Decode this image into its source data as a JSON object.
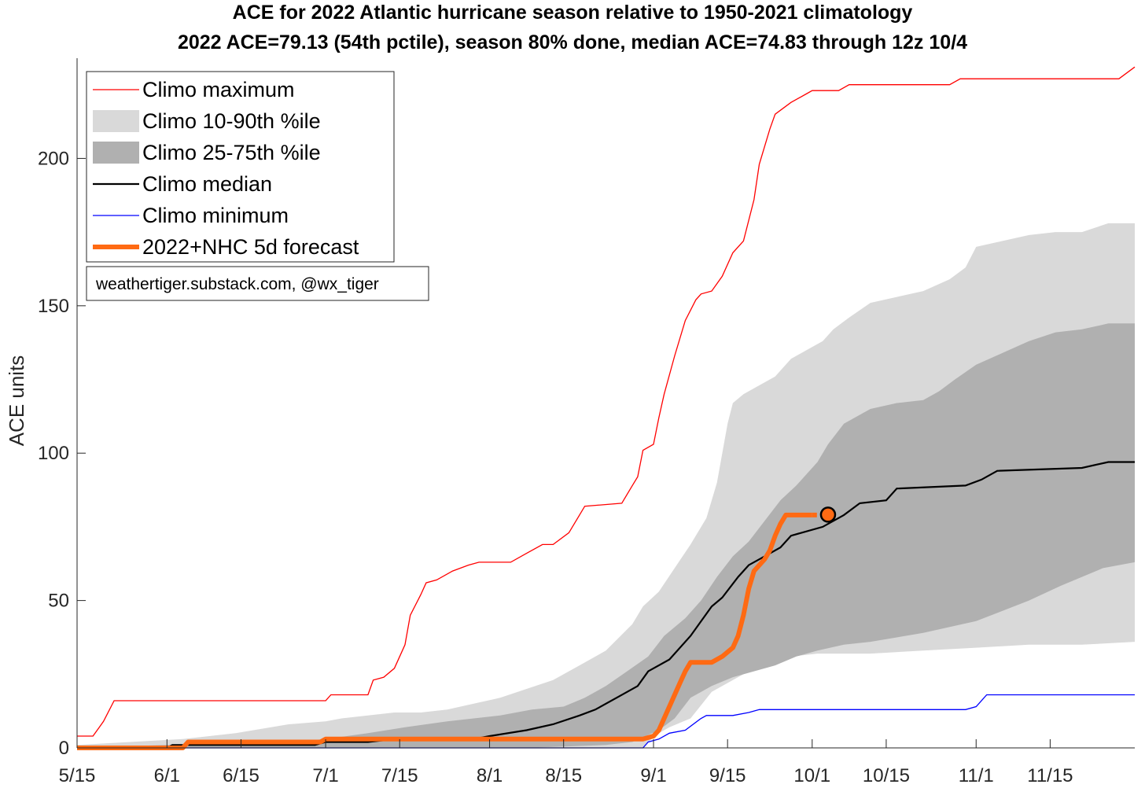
{
  "chart_data": {
    "type": "area",
    "title": "ACE for 2022 Atlantic hurricane season relative to 1950-2021 climatology",
    "subtitle": "2022 ACE=79.13 (54th pctile), season 80% done, median ACE=74.83 through 12z 10/4",
    "xlabel": "",
    "ylabel": "ACE units",
    "x_unit": "days since May 15",
    "xlim": [
      0,
      200
    ],
    "ylim": [
      0,
      234
    ],
    "grid": false,
    "legend_position": "top-left",
    "x_ticks": [
      {
        "label": "5/15",
        "day": 0
      },
      {
        "label": "6/1",
        "day": 17
      },
      {
        "label": "6/15",
        "day": 31
      },
      {
        "label": "7/1",
        "day": 47
      },
      {
        "label": "7/15",
        "day": 61
      },
      {
        "label": "8/1",
        "day": 78
      },
      {
        "label": "8/15",
        "day": 92
      },
      {
        "label": "9/1",
        "day": 109
      },
      {
        "label": "9/15",
        "day": 123
      },
      {
        "label": "10/1",
        "day": 139
      },
      {
        "label": "10/15",
        "day": 153
      },
      {
        "label": "11/1",
        "day": 170
      },
      {
        "label": "11/15",
        "day": 184
      }
    ],
    "y_ticks": [
      0,
      50,
      100,
      150,
      200
    ],
    "legend": [
      {
        "key": "max",
        "label": "Climo maximum"
      },
      {
        "key": "p10_90",
        "label": "Climo 10-90th %ile"
      },
      {
        "key": "p25_75",
        "label": "Climo 25-75th %ile"
      },
      {
        "key": "median",
        "label": "Climo median"
      },
      {
        "key": "min",
        "label": "Climo minimum"
      },
      {
        "key": "y2022",
        "label": "2022+NHC 5d forecast"
      }
    ],
    "annotation": "weathertiger.substack.com, @wx_tiger",
    "colors": {
      "max": "#ff0000",
      "p10_90": "#d9d9d9",
      "p25_75": "#b0b0b0",
      "median": "#000000",
      "min": "#0000ff",
      "y2022": "#ff6a13",
      "marker_fill": "#ff6a13",
      "marker_edge": "#000000"
    },
    "series": {
      "max": [
        [
          0,
          4
        ],
        [
          3,
          4
        ],
        [
          5,
          9
        ],
        [
          7,
          16
        ],
        [
          30,
          16
        ],
        [
          47,
          16
        ],
        [
          48,
          18
        ],
        [
          55,
          18
        ],
        [
          56,
          23
        ],
        [
          58,
          24
        ],
        [
          60,
          27
        ],
        [
          62,
          35
        ],
        [
          63,
          45
        ],
        [
          65,
          52
        ],
        [
          66,
          56
        ],
        [
          68,
          57
        ],
        [
          71,
          60
        ],
        [
          74,
          62
        ],
        [
          76,
          63
        ],
        [
          82,
          63
        ],
        [
          85,
          66
        ],
        [
          88,
          69
        ],
        [
          90,
          69
        ],
        [
          93,
          73
        ],
        [
          95,
          79
        ],
        [
          96,
          82
        ],
        [
          103,
          83
        ],
        [
          105,
          89
        ],
        [
          106,
          92
        ],
        [
          107,
          101
        ],
        [
          109,
          103
        ],
        [
          110,
          112
        ],
        [
          111,
          120
        ],
        [
          113,
          133
        ],
        [
          115,
          145
        ],
        [
          117,
          152
        ],
        [
          118,
          154
        ],
        [
          120,
          155
        ],
        [
          122,
          160
        ],
        [
          124,
          168
        ],
        [
          126,
          172
        ],
        [
          128,
          186
        ],
        [
          129,
          198
        ],
        [
          131,
          210
        ],
        [
          132,
          215
        ],
        [
          135,
          219
        ],
        [
          138,
          222
        ],
        [
          139,
          223
        ],
        [
          144,
          223
        ],
        [
          146,
          225
        ],
        [
          165,
          225
        ],
        [
          167,
          227
        ],
        [
          197,
          227
        ],
        [
          200,
          231
        ]
      ],
      "min": [
        [
          0,
          0
        ],
        [
          107,
          0
        ],
        [
          108,
          2
        ],
        [
          110,
          3
        ],
        [
          112,
          5
        ],
        [
          115,
          6
        ],
        [
          118,
          10
        ],
        [
          119,
          11
        ],
        [
          124,
          11
        ],
        [
          127,
          12
        ],
        [
          129,
          13
        ],
        [
          168,
          13
        ],
        [
          170,
          14
        ],
        [
          172,
          18
        ],
        [
          200,
          18
        ]
      ],
      "median": [
        [
          0,
          0
        ],
        [
          17,
          0
        ],
        [
          18,
          1
        ],
        [
          45,
          1
        ],
        [
          47,
          2
        ],
        [
          55,
          2
        ],
        [
          60,
          3
        ],
        [
          75,
          3
        ],
        [
          78,
          4
        ],
        [
          85,
          6
        ],
        [
          90,
          8
        ],
        [
          95,
          11
        ],
        [
          98,
          13
        ],
        [
          102,
          17
        ],
        [
          106,
          21
        ],
        [
          108,
          26
        ],
        [
          112,
          30
        ],
        [
          116,
          38
        ],
        [
          120,
          48
        ],
        [
          122,
          51
        ],
        [
          125,
          58
        ],
        [
          127,
          62
        ],
        [
          130,
          65
        ],
        [
          133,
          68
        ],
        [
          135,
          72
        ],
        [
          137,
          73
        ],
        [
          141,
          75
        ],
        [
          145,
          79
        ],
        [
          148,
          83
        ],
        [
          153,
          84
        ],
        [
          155,
          88
        ],
        [
          168,
          89
        ],
        [
          171,
          91
        ],
        [
          174,
          94
        ],
        [
          190,
          95
        ],
        [
          195,
          97
        ],
        [
          200,
          97
        ]
      ],
      "p25_75": {
        "upper": [
          [
            0,
            0
          ],
          [
            17,
            1
          ],
          [
            40,
            2
          ],
          [
            47,
            3
          ],
          [
            55,
            5
          ],
          [
            62,
            7
          ],
          [
            70,
            9
          ],
          [
            80,
            11
          ],
          [
            86,
            13
          ],
          [
            92,
            14
          ],
          [
            96,
            17
          ],
          [
            100,
            21
          ],
          [
            104,
            26
          ],
          [
            108,
            31
          ],
          [
            111,
            38
          ],
          [
            115,
            44
          ],
          [
            118,
            50
          ],
          [
            121,
            58
          ],
          [
            124,
            65
          ],
          [
            127,
            70
          ],
          [
            130,
            77
          ],
          [
            133,
            84
          ],
          [
            136,
            89
          ],
          [
            140,
            97
          ],
          [
            142,
            103
          ],
          [
            145,
            110
          ],
          [
            150,
            115
          ],
          [
            155,
            117
          ],
          [
            160,
            118
          ],
          [
            163,
            121
          ],
          [
            166,
            125
          ],
          [
            170,
            130
          ],
          [
            175,
            134
          ],
          [
            180,
            138
          ],
          [
            185,
            141
          ],
          [
            190,
            142
          ],
          [
            195,
            144
          ],
          [
            200,
            144
          ]
        ],
        "lower": [
          [
            0,
            0
          ],
          [
            47,
            0
          ],
          [
            85,
            0
          ],
          [
            100,
            1
          ],
          [
            105,
            2
          ],
          [
            110,
            6
          ],
          [
            113,
            10
          ],
          [
            116,
            17
          ],
          [
            120,
            21
          ],
          [
            124,
            24
          ],
          [
            128,
            26
          ],
          [
            132,
            28
          ],
          [
            136,
            31
          ],
          [
            140,
            33
          ],
          [
            145,
            35
          ],
          [
            150,
            36
          ],
          [
            160,
            39
          ],
          [
            170,
            43
          ],
          [
            180,
            50
          ],
          [
            186,
            55
          ],
          [
            190,
            58
          ],
          [
            194,
            61
          ],
          [
            200,
            63
          ]
        ]
      },
      "p10_90": {
        "upper": [
          [
            0,
            1
          ],
          [
            10,
            2
          ],
          [
            20,
            3
          ],
          [
            30,
            5
          ],
          [
            40,
            8
          ],
          [
            47,
            9
          ],
          [
            50,
            10
          ],
          [
            55,
            11
          ],
          [
            60,
            12
          ],
          [
            65,
            12
          ],
          [
            70,
            13
          ],
          [
            75,
            15
          ],
          [
            80,
            17
          ],
          [
            85,
            20
          ],
          [
            90,
            23
          ],
          [
            95,
            28
          ],
          [
            100,
            33
          ],
          [
            105,
            42
          ],
          [
            107,
            48
          ],
          [
            110,
            53
          ],
          [
            113,
            61
          ],
          [
            116,
            69
          ],
          [
            119,
            78
          ],
          [
            121,
            90
          ],
          [
            123,
            110
          ],
          [
            124,
            117
          ],
          [
            126,
            120
          ],
          [
            128,
            122
          ],
          [
            132,
            126
          ],
          [
            135,
            132
          ],
          [
            138,
            135
          ],
          [
            141,
            138
          ],
          [
            143,
            142
          ],
          [
            146,
            146
          ],
          [
            150,
            151
          ],
          [
            155,
            153
          ],
          [
            160,
            155
          ],
          [
            165,
            159
          ],
          [
            168,
            163
          ],
          [
            170,
            170
          ],
          [
            175,
            172
          ],
          [
            180,
            174
          ],
          [
            185,
            175
          ],
          [
            190,
            175
          ],
          [
            195,
            178
          ],
          [
            200,
            178
          ]
        ],
        "lower": [
          [
            0,
            0
          ],
          [
            107,
            0
          ],
          [
            108,
            2
          ],
          [
            110,
            5
          ],
          [
            112,
            7
          ],
          [
            116,
            10
          ],
          [
            120,
            19
          ],
          [
            124,
            23
          ],
          [
            127,
            26
          ],
          [
            130,
            28
          ],
          [
            135,
            31
          ],
          [
            140,
            32
          ],
          [
            150,
            32
          ],
          [
            160,
            33
          ],
          [
            170,
            34
          ],
          [
            180,
            35
          ],
          [
            190,
            35
          ],
          [
            200,
            36
          ]
        ]
      },
      "y2022": {
        "solid": [
          [
            0,
            0
          ],
          [
            20,
            0
          ],
          [
            21,
            2
          ],
          [
            46,
            2
          ],
          [
            47,
            3
          ],
          [
            103,
            3
          ],
          [
            107,
            3
          ],
          [
            109,
            4
          ],
          [
            110,
            6
          ],
          [
            111,
            10
          ],
          [
            112,
            14
          ],
          [
            113,
            18
          ],
          [
            114,
            22
          ],
          [
            115,
            26
          ],
          [
            116,
            29
          ],
          [
            120,
            29
          ],
          [
            122,
            31
          ],
          [
            124,
            34
          ],
          [
            125,
            38
          ],
          [
            126,
            45
          ],
          [
            127,
            54
          ],
          [
            128,
            60
          ],
          [
            129,
            62
          ],
          [
            130,
            64
          ],
          [
            131,
            67
          ],
          [
            132,
            72
          ],
          [
            133,
            76
          ],
          [
            134,
            79
          ],
          [
            139,
            79
          ]
        ],
        "forecast": [
          [
            139,
            79
          ],
          [
            144,
            79
          ]
        ],
        "current": {
          "day": 142,
          "ace": 79.13
        }
      }
    }
  }
}
